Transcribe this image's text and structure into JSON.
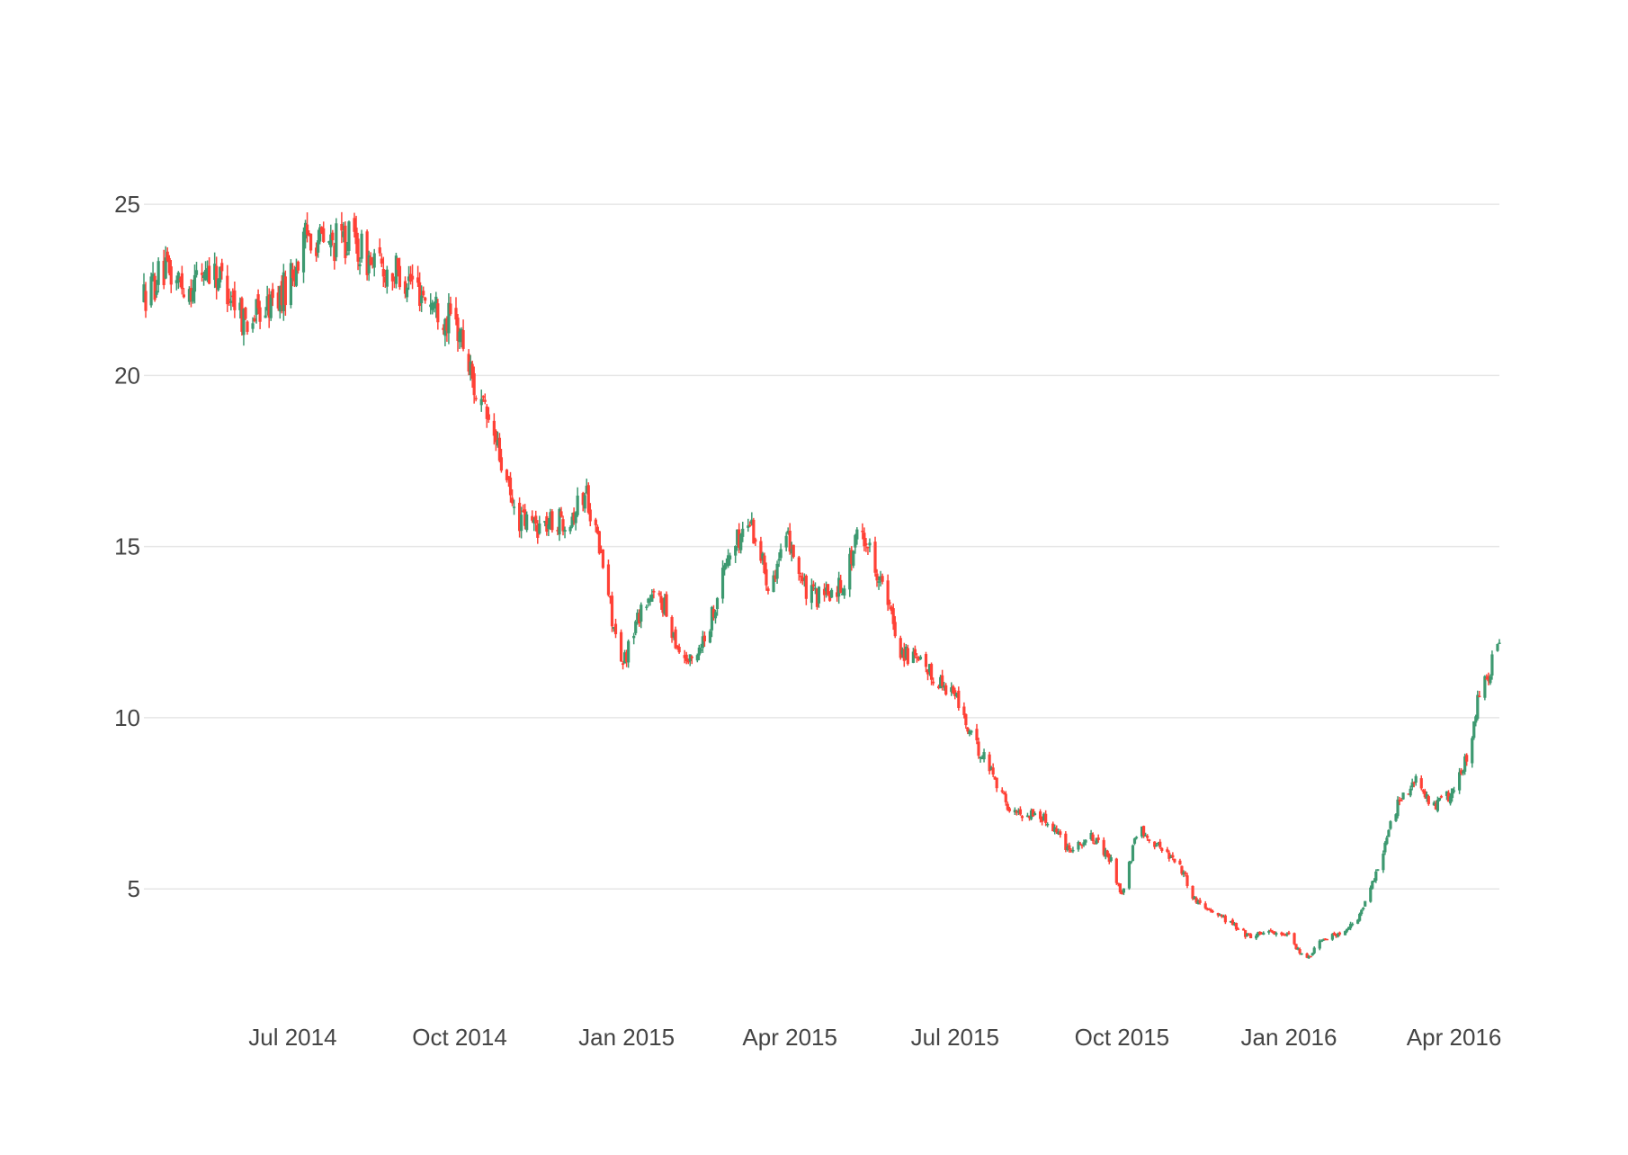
{
  "chart_data": {
    "type": "candlestick",
    "x_range": [
      "2014-04-10",
      "2016-04-26"
    ],
    "ylim": [
      1.8,
      26.5
    ],
    "y_ticks": [
      5,
      10,
      15,
      20,
      25
    ],
    "x_ticks": [
      {
        "date": "2014-07-01",
        "label": "Jul 2014"
      },
      {
        "date": "2014-10-01",
        "label": "Oct 2014"
      },
      {
        "date": "2015-01-01",
        "label": "Jan 2015"
      },
      {
        "date": "2015-04-01",
        "label": "Apr 2015"
      },
      {
        "date": "2015-07-01",
        "label": "Jul 2015"
      },
      {
        "date": "2015-10-01",
        "label": "Oct 2015"
      },
      {
        "date": "2016-01-01",
        "label": "Jan 2016"
      },
      {
        "date": "2016-04-01",
        "label": "Apr 2016"
      }
    ],
    "grid": true,
    "legend": "none",
    "increasing_color": "#3d9970",
    "decreasing_color": "#ff4136",
    "approx_close_anchors": [
      [
        "2014-04-10",
        22.3
      ],
      [
        "2014-04-20",
        23.0
      ],
      [
        "2014-05-05",
        22.6
      ],
      [
        "2014-05-15",
        23.2
      ],
      [
        "2014-05-25",
        22.7
      ],
      [
        "2014-06-05",
        21.6
      ],
      [
        "2014-06-15",
        21.9
      ],
      [
        "2014-06-25",
        22.4
      ],
      [
        "2014-07-01",
        23.0
      ],
      [
        "2014-07-10",
        24.2
      ],
      [
        "2014-07-20",
        23.8
      ],
      [
        "2014-08-01",
        24.0
      ],
      [
        "2014-08-15",
        23.2
      ],
      [
        "2014-09-01",
        22.9
      ],
      [
        "2014-09-15",
        22.2
      ],
      [
        "2014-10-01",
        21.3
      ],
      [
        "2014-10-10",
        19.5
      ],
      [
        "2014-10-20",
        18.2
      ],
      [
        "2014-11-01",
        15.8
      ],
      [
        "2014-11-15",
        15.6
      ],
      [
        "2014-12-01",
        15.9
      ],
      [
        "2014-12-10",
        16.6
      ],
      [
        "2014-12-20",
        14.2
      ],
      [
        "2014-12-29",
        11.4
      ],
      [
        "2015-01-10",
        13.4
      ],
      [
        "2015-01-20",
        13.5
      ],
      [
        "2015-01-30",
        12.0
      ],
      [
        "2015-02-05",
        11.6
      ],
      [
        "2015-02-15",
        12.6
      ],
      [
        "2015-02-25",
        14.6
      ],
      [
        "2015-03-10",
        15.8
      ],
      [
        "2015-03-20",
        14.0
      ],
      [
        "2015-04-01",
        15.2
      ],
      [
        "2015-04-10",
        13.6
      ],
      [
        "2015-04-20",
        13.5
      ],
      [
        "2015-05-01",
        14.0
      ],
      [
        "2015-05-10",
        15.6
      ],
      [
        "2015-05-20",
        14.2
      ],
      [
        "2015-06-01",
        12.0
      ],
      [
        "2015-06-15",
        11.4
      ],
      [
        "2015-07-01",
        10.7
      ],
      [
        "2015-07-10",
        9.4
      ],
      [
        "2015-07-20",
        8.6
      ],
      [
        "2015-08-01",
        7.2
      ],
      [
        "2015-08-15",
        7.2
      ],
      [
        "2015-08-25",
        6.8
      ],
      [
        "2015-09-01",
        6.2
      ],
      [
        "2015-09-15",
        6.5
      ],
      [
        "2015-09-25",
        5.8
      ],
      [
        "2015-10-01",
        4.8
      ],
      [
        "2015-10-10",
        6.8
      ],
      [
        "2015-10-20",
        6.3
      ],
      [
        "2015-11-01",
        5.8
      ],
      [
        "2015-11-10",
        4.7
      ],
      [
        "2015-11-25",
        4.2
      ],
      [
        "2015-12-10",
        3.6
      ],
      [
        "2015-12-20",
        3.8
      ],
      [
        "2016-01-01",
        3.6
      ],
      [
        "2016-01-10",
        2.9
      ],
      [
        "2016-01-20",
        3.6
      ],
      [
        "2016-02-01",
        3.7
      ],
      [
        "2016-02-10",
        4.3
      ],
      [
        "2016-02-20",
        5.8
      ],
      [
        "2016-03-01",
        7.5
      ],
      [
        "2016-03-10",
        8.2
      ],
      [
        "2016-03-20",
        7.4
      ],
      [
        "2016-04-01",
        7.8
      ],
      [
        "2016-04-10",
        9.2
      ],
      [
        "2016-04-15",
        10.8
      ],
      [
        "2016-04-20",
        11.3
      ],
      [
        "2016-04-26",
        12.2
      ]
    ]
  }
}
